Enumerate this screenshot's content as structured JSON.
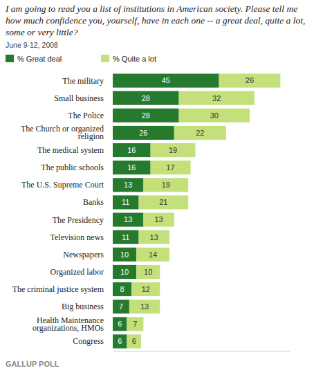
{
  "chart_data": {
    "type": "bar",
    "orientation": "horizontal",
    "stacked": true,
    "data_labels": true,
    "tick_labels": false,
    "legend": "top left",
    "title": "I am going to read you a list of institutions in American society. Please tell me how much confidence you, yourself, have in each one -- a great deal, quite a lot, some or very little?",
    "subtitle": "June 9-12, 2008",
    "source": "GALLUP POLL",
    "categories": [
      "The military",
      "Small business",
      "The Police",
      "The Church or organized religion",
      "The medical system",
      "The public schools",
      "The U.S. Supreme Court",
      "Banks",
      "The Presidency",
      "Television news",
      "Newspapers",
      "Organized labor",
      "The criminal justice system",
      "Big business",
      "Health Maintenance organizations, HMOs",
      "Congress"
    ],
    "series": [
      {
        "name": "% Great deal",
        "color": "#267a2e",
        "values": [
          45,
          28,
          28,
          26,
          16,
          16,
          13,
          11,
          13,
          11,
          10,
          10,
          8,
          7,
          6,
          6
        ]
      },
      {
        "name": "% Quite a lot",
        "color": "#c3e07a",
        "values": [
          26,
          32,
          30,
          22,
          19,
          17,
          19,
          21,
          13,
          13,
          14,
          10,
          12,
          13,
          7,
          6
        ]
      }
    ],
    "xlim": [
      0,
      75
    ]
  }
}
